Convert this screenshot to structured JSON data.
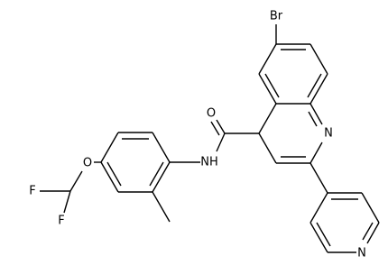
{
  "atoms": [
    {
      "label": "Br"
    },
    {
      "label": "O"
    },
    {
      "label": "NH"
    },
    {
      "label": "N"
    },
    {
      "label": "N"
    },
    {
      "label": "O"
    },
    {
      "label": "F"
    },
    {
      "label": "F"
    }
  ]
}
